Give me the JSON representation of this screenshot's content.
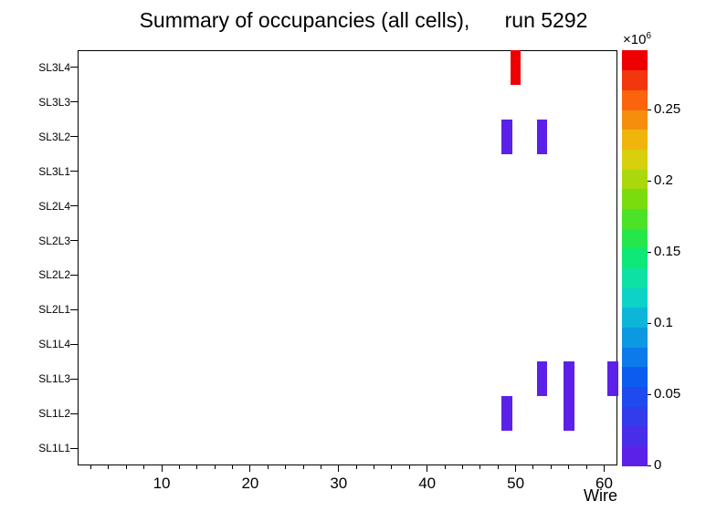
{
  "chart_data": {
    "type": "heatmap",
    "title": "Summary of occupancies (all cells),      run 5292",
    "xlabel": "Wire",
    "x_range": [
      1,
      61
    ],
    "x_major_ticks": [
      10,
      20,
      30,
      40,
      50,
      60
    ],
    "x_minor_tick_step": 2,
    "y_categories": [
      "SL1L1",
      "SL1L2",
      "SL1L3",
      "SL1L4",
      "SL2L1",
      "SL2L2",
      "SL2L3",
      "SL2L4",
      "SL3L1",
      "SL3L2",
      "SL3L3",
      "SL3L4"
    ],
    "z_axis": {
      "scale_mantissa": "×10",
      "scale_exponent": "6",
      "max": 0.2917,
      "ticks": [
        {
          "value": 0,
          "label": "0"
        },
        {
          "value": 0.05,
          "label": "0.05"
        },
        {
          "value": 0.1,
          "label": "0.1"
        },
        {
          "value": 0.15,
          "label": "0.15"
        },
        {
          "value": 0.2,
          "label": "0.2"
        },
        {
          "value": 0.25,
          "label": "0.25"
        }
      ]
    },
    "palette_bottom_to_top": [
      "#5C21E8",
      "#472FEA",
      "#333CEC",
      "#1F4AEE",
      "#0D5CF0",
      "#0D7AEC",
      "#0D98E2",
      "#0DB6D8",
      "#0DD2C6",
      "#0DE2A4",
      "#0DE878",
      "#25E74B",
      "#4CE228",
      "#7BDC0D",
      "#ABD70D",
      "#D8D00D",
      "#EFB50D",
      "#F68E0D",
      "#F9640D",
      "#F2360D",
      "#EE0000"
    ],
    "cells": [
      {
        "row": "SL3L4",
        "x": 50,
        "value_x1e6": 0.29,
        "color": "#EE0000"
      },
      {
        "row": "SL3L2",
        "x": 49,
        "value_x1e6": 0.01,
        "color": "#5C21E8"
      },
      {
        "row": "SL3L2",
        "x": 53,
        "value_x1e6": 0.01,
        "color": "#5C21E8"
      },
      {
        "row": "SL1L3",
        "x": 53,
        "value_x1e6": 0.01,
        "color": "#5C21E8"
      },
      {
        "row": "SL1L3",
        "x": 56,
        "value_x1e6": 0.01,
        "color": "#5C21E8"
      },
      {
        "row": "SL1L3",
        "x": 61,
        "value_x1e6": 0.01,
        "color": "#5C21E8"
      },
      {
        "row": "SL1L2",
        "x": 49,
        "value_x1e6": 0.01,
        "color": "#5C21E8"
      },
      {
        "row": "SL1L2",
        "x": 56,
        "value_x1e6": 0.01,
        "color": "#5C21E8"
      }
    ]
  }
}
